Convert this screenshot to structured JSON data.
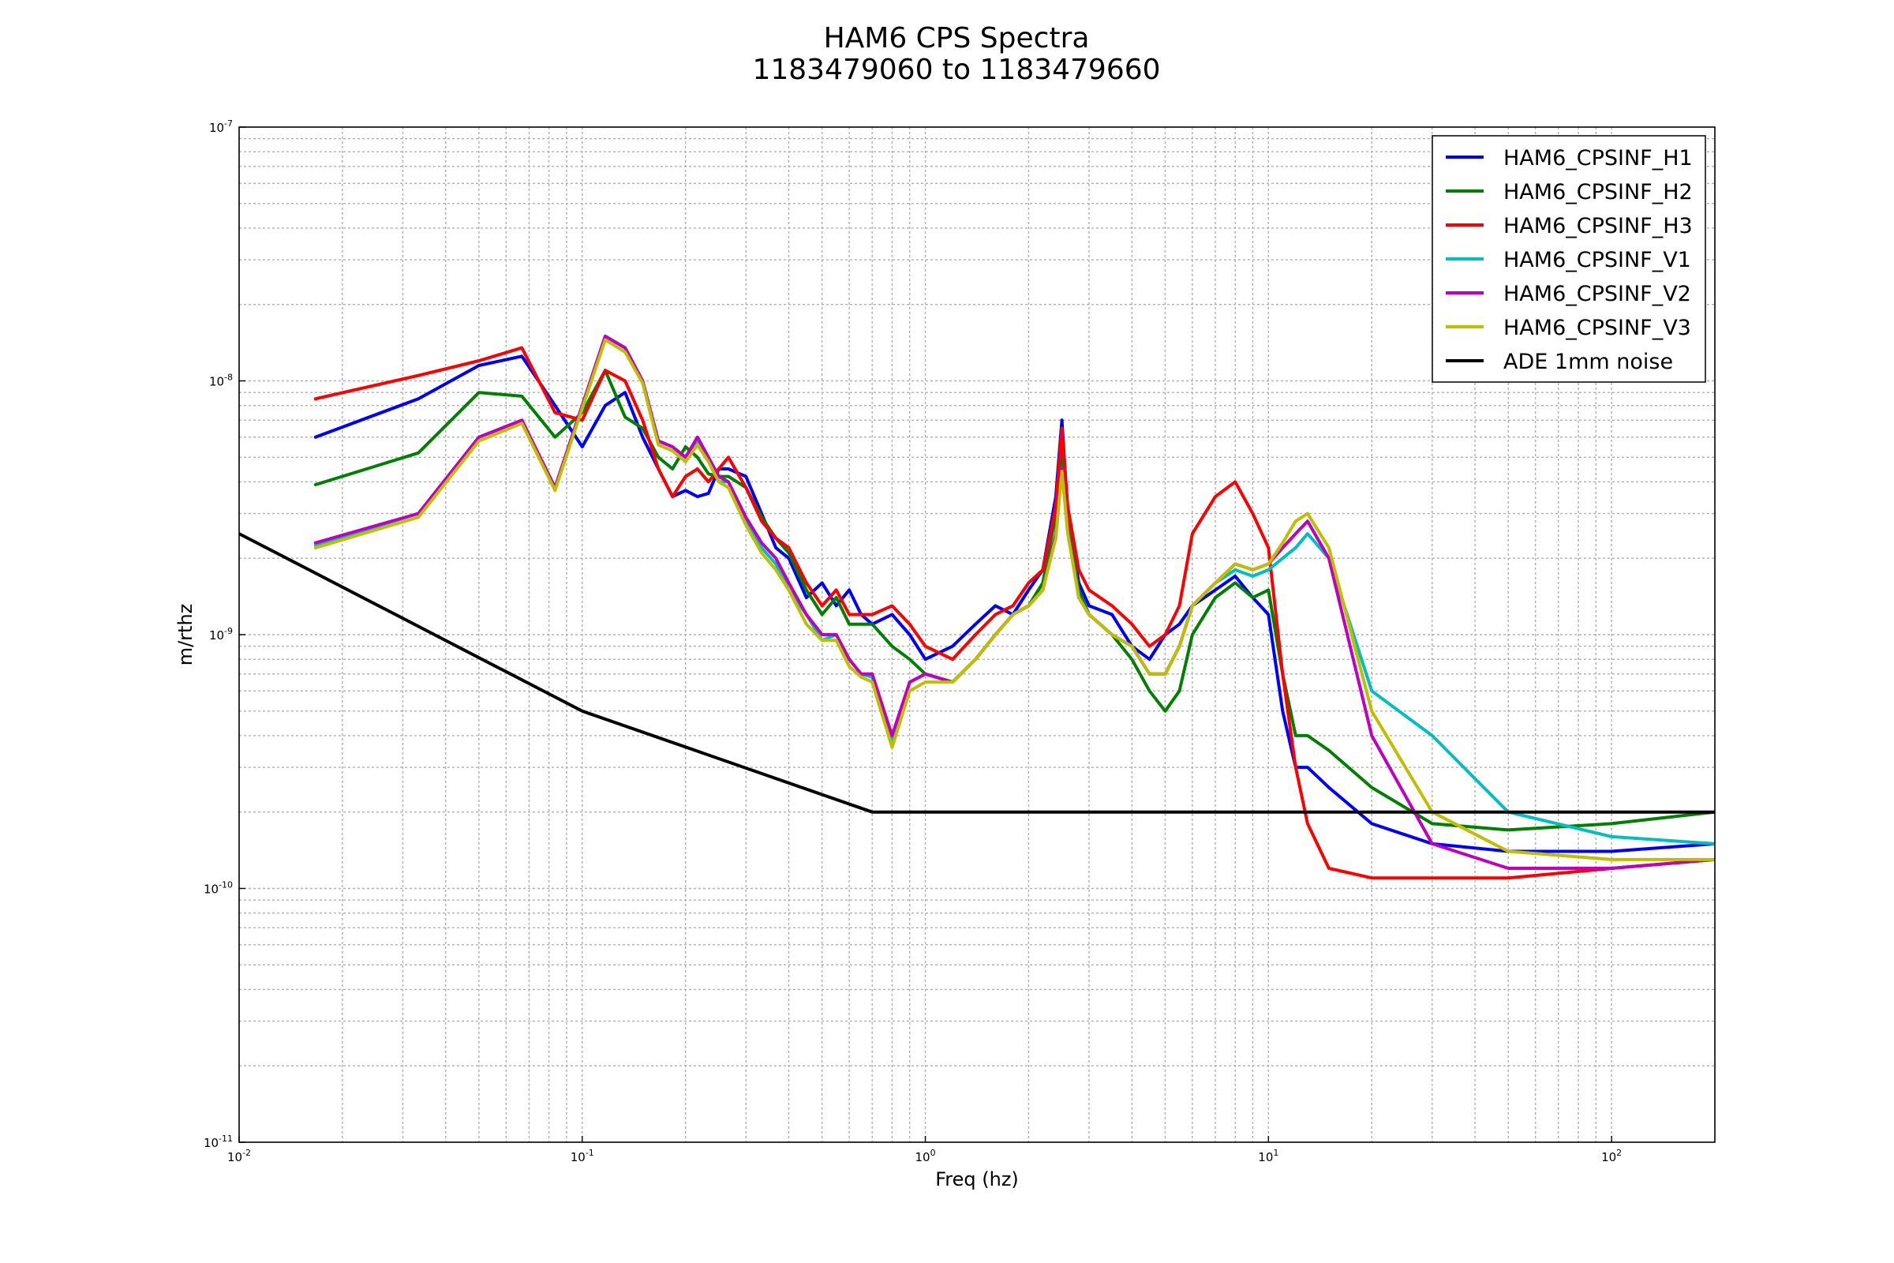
{
  "chart_data": {
    "type": "line",
    "title": "HAM6 CPS Spectra",
    "subtitle": "1183479060 to 1183479660",
    "xlabel": "Freq (hz)",
    "ylabel": "m/rthz",
    "x_scale": "log",
    "y_scale": "log",
    "xlim": [
      0.01,
      200
    ],
    "ylim": [
      1e-11,
      1e-07
    ],
    "x_ticks": [
      {
        "base": "10",
        "exp": "-2",
        "value": 0.01
      },
      {
        "base": "10",
        "exp": "-1",
        "value": 0.1
      },
      {
        "base": "10",
        "exp": "0",
        "value": 1
      },
      {
        "base": "10",
        "exp": "1",
        "value": 10
      },
      {
        "base": "10",
        "exp": "2",
        "value": 100
      }
    ],
    "y_ticks": [
      {
        "base": "10",
        "exp": "-7",
        "value": 1e-07
      },
      {
        "base": "10",
        "exp": "-8",
        "value": 1e-08
      },
      {
        "base": "10",
        "exp": "-9",
        "value": 1e-09
      },
      {
        "base": "10",
        "exp": "-10",
        "value": 1e-10
      },
      {
        "base": "10",
        "exp": "-11",
        "value": 1e-11
      }
    ],
    "grid": true,
    "legend_position": "top-right",
    "series": [
      {
        "name": "HAM6_CPSINF_H1",
        "color": "#0000ff",
        "x": [
          0.0167,
          0.0333,
          0.05,
          0.0667,
          0.0833,
          0.1,
          0.1167,
          0.1333,
          0.15,
          0.1667,
          0.1833,
          0.2,
          0.2167,
          0.2333,
          0.25,
          0.2667,
          0.3,
          0.3333,
          0.3667,
          0.4,
          0.45,
          0.5,
          0.55,
          0.6,
          0.65,
          0.7,
          0.8,
          0.9,
          1.0,
          1.2,
          1.4,
          1.6,
          1.8,
          2.0,
          2.2,
          2.4,
          2.5,
          2.6,
          2.8,
          3.0,
          3.5,
          4.0,
          4.5,
          5.0,
          5.5,
          6.0,
          7.0,
          8.0,
          9.0,
          10.0,
          11.0,
          12.0,
          13.0,
          15.0,
          20.0,
          30.0,
          50.0,
          100.0,
          200.0
        ],
        "y": [
          6e-09,
          8.5e-09,
          1.15e-08,
          1.25e-08,
          8e-09,
          5.5e-09,
          8e-09,
          9e-09,
          6e-09,
          4.5e-09,
          3.5e-09,
          3.7e-09,
          3.5e-09,
          3.6e-09,
          4.5e-09,
          4.5e-09,
          4.2e-09,
          3e-09,
          2.2e-09,
          2e-09,
          1.4e-09,
          1.6e-09,
          1.3e-09,
          1.5e-09,
          1.2e-09,
          1.1e-09,
          1.2e-09,
          1e-09,
          8e-10,
          9e-10,
          1.1e-09,
          1.3e-09,
          1.2e-09,
          1.5e-09,
          1.8e-09,
          3.5e-09,
          7e-09,
          3e-09,
          1.6e-09,
          1.3e-09,
          1.2e-09,
          9e-10,
          8e-10,
          1e-09,
          1.1e-09,
          1.3e-09,
          1.5e-09,
          1.7e-09,
          1.4e-09,
          1.2e-09,
          5e-10,
          3e-10,
          3e-10,
          2.5e-10,
          1.8e-10,
          1.5e-10,
          1.4e-10,
          1.4e-10,
          1.5e-10
        ]
      },
      {
        "name": "HAM6_CPSINF_H2",
        "color": "#008000",
        "x": [
          0.0167,
          0.0333,
          0.05,
          0.0667,
          0.0833,
          0.1,
          0.1167,
          0.1333,
          0.15,
          0.1667,
          0.1833,
          0.2,
          0.2167,
          0.2333,
          0.25,
          0.2667,
          0.3,
          0.3333,
          0.3667,
          0.4,
          0.45,
          0.5,
          0.55,
          0.6,
          0.65,
          0.7,
          0.8,
          0.9,
          1.0,
          1.2,
          1.4,
          1.6,
          1.8,
          2.0,
          2.2,
          2.4,
          2.5,
          2.6,
          2.8,
          3.0,
          3.5,
          4.0,
          4.5,
          5.0,
          5.5,
          6.0,
          7.0,
          8.0,
          9.0,
          10.0,
          11.0,
          12.0,
          13.0,
          15.0,
          20.0,
          30.0,
          50.0,
          100.0,
          200.0
        ],
        "y": [
          3.9e-09,
          5.2e-09,
          9e-09,
          8.7e-09,
          6e-09,
          7.5e-09,
          1.1e-08,
          7.2e-09,
          6.5e-09,
          5e-09,
          4.5e-09,
          5.5e-09,
          5e-09,
          4.3e-09,
          4.2e-09,
          4.2e-09,
          3.8e-09,
          2.9e-09,
          2.4e-09,
          2.1e-09,
          1.5e-09,
          1.2e-09,
          1.4e-09,
          1.1e-09,
          1.1e-09,
          1.1e-09,
          9e-10,
          8e-10,
          7e-10,
          6.5e-10,
          8e-10,
          1e-09,
          1.2e-09,
          1.3e-09,
          1.6e-09,
          3e-09,
          5.5e-09,
          2.8e-09,
          1.5e-09,
          1.2e-09,
          1e-09,
          8e-10,
          6e-10,
          5e-10,
          6e-10,
          1e-09,
          1.4e-09,
          1.6e-09,
          1.4e-09,
          1.5e-09,
          7e-10,
          4e-10,
          4e-10,
          3.5e-10,
          2.5e-10,
          1.8e-10,
          1.7e-10,
          1.8e-10,
          2e-10
        ]
      },
      {
        "name": "HAM6_CPSINF_H3",
        "color": "#ff0000",
        "x": [
          0.0167,
          0.0333,
          0.05,
          0.0667,
          0.0833,
          0.1,
          0.1167,
          0.1333,
          0.15,
          0.1667,
          0.1833,
          0.2,
          0.2167,
          0.2333,
          0.25,
          0.2667,
          0.3,
          0.3333,
          0.3667,
          0.4,
          0.45,
          0.5,
          0.55,
          0.6,
          0.65,
          0.7,
          0.8,
          0.9,
          1.0,
          1.2,
          1.4,
          1.6,
          1.8,
          2.0,
          2.2,
          2.4,
          2.5,
          2.6,
          2.8,
          3.0,
          3.5,
          4.0,
          4.5,
          5.0,
          5.5,
          6.0,
          7.0,
          8.0,
          9.0,
          10.0,
          11.0,
          12.0,
          13.0,
          15.0,
          20.0,
          30.0,
          50.0,
          100.0,
          200.0
        ],
        "y": [
          8.5e-09,
          1.05e-08,
          1.2e-08,
          1.35e-08,
          7.5e-09,
          7e-09,
          1.1e-08,
          1e-08,
          7e-09,
          4.5e-09,
          3.5e-09,
          4.2e-09,
          4.5e-09,
          4e-09,
          4.5e-09,
          5e-09,
          3.8e-09,
          2.8e-09,
          2.4e-09,
          2.2e-09,
          1.6e-09,
          1.3e-09,
          1.5e-09,
          1.2e-09,
          1.2e-09,
          1.2e-09,
          1.3e-09,
          1.1e-09,
          9e-10,
          8e-10,
          1e-09,
          1.2e-09,
          1.3e-09,
          1.6e-09,
          1.8e-09,
          3.2e-09,
          6.5e-09,
          3.2e-09,
          1.8e-09,
          1.5e-09,
          1.3e-09,
          1.1e-09,
          9e-10,
          1e-09,
          1.3e-09,
          2.5e-09,
          3.5e-09,
          4e-09,
          3e-09,
          2.2e-09,
          7e-10,
          3e-10,
          1.8e-10,
          1.2e-10,
          1.1e-10,
          1.1e-10,
          1.1e-10,
          1.2e-10,
          1.3e-10
        ]
      },
      {
        "name": "HAM6_CPSINF_V1",
        "color": "#00bfbf",
        "x": [
          0.0167,
          0.0333,
          0.05,
          0.0667,
          0.0833,
          0.1,
          0.1167,
          0.1333,
          0.15,
          0.1667,
          0.1833,
          0.2,
          0.2167,
          0.2333,
          0.25,
          0.2667,
          0.3,
          0.3333,
          0.3667,
          0.4,
          0.45,
          0.5,
          0.55,
          0.6,
          0.65,
          0.7,
          0.8,
          0.9,
          1.0,
          1.2,
          1.4,
          1.6,
          1.8,
          2.0,
          2.2,
          2.4,
          2.5,
          2.6,
          2.8,
          3.0,
          3.5,
          4.0,
          4.5,
          5.0,
          5.5,
          6.0,
          7.0,
          8.0,
          9.0,
          10.0,
          11.0,
          12.0,
          13.0,
          15.0,
          20.0,
          30.0,
          50.0,
          100.0,
          200.0
        ],
        "y": [
          2.25e-09,
          3e-09,
          6e-09,
          7e-09,
          3.8e-09,
          8e-09,
          1.5e-08,
          1.35e-08,
          1e-08,
          5.8e-09,
          5.5e-09,
          5e-09,
          5.8e-09,
          5e-09,
          4e-09,
          4e-09,
          2.8e-09,
          2.2e-09,
          1.9e-09,
          1.5e-09,
          1.2e-09,
          9.5e-10,
          1e-09,
          8e-10,
          7e-10,
          6.8e-10,
          3.8e-10,
          6.5e-10,
          7e-10,
          6.5e-10,
          8e-10,
          1e-09,
          1.2e-09,
          1.3e-09,
          1.5e-09,
          2.5e-09,
          4.5e-09,
          2.6e-09,
          1.4e-09,
          1.2e-09,
          1e-09,
          9e-10,
          7e-10,
          7e-10,
          9e-10,
          1.3e-09,
          1.6e-09,
          1.8e-09,
          1.7e-09,
          1.8e-09,
          2e-09,
          2.2e-09,
          2.5e-09,
          2e-09,
          6e-10,
          4e-10,
          2e-10,
          1.6e-10,
          1.5e-10
        ]
      },
      {
        "name": "HAM6_CPSINF_V2",
        "color": "#bf00bf",
        "x": [
          0.0167,
          0.0333,
          0.05,
          0.0667,
          0.0833,
          0.1,
          0.1167,
          0.1333,
          0.15,
          0.1667,
          0.1833,
          0.2,
          0.2167,
          0.2333,
          0.25,
          0.2667,
          0.3,
          0.3333,
          0.3667,
          0.4,
          0.45,
          0.5,
          0.55,
          0.6,
          0.65,
          0.7,
          0.8,
          0.9,
          1.0,
          1.2,
          1.4,
          1.6,
          1.8,
          2.0,
          2.2,
          2.4,
          2.5,
          2.6,
          2.8,
          3.0,
          3.5,
          4.0,
          4.5,
          5.0,
          5.5,
          6.0,
          7.0,
          8.0,
          9.0,
          10.0,
          11.0,
          12.0,
          13.0,
          15.0,
          20.0,
          30.0,
          50.0,
          100.0,
          200.0
        ],
        "y": [
          2.3e-09,
          3e-09,
          6e-09,
          7e-09,
          3.8e-09,
          8e-09,
          1.5e-08,
          1.35e-08,
          1e-08,
          5.8e-09,
          5.5e-09,
          5e-09,
          6e-09,
          5e-09,
          4.2e-09,
          4e-09,
          2.9e-09,
          2.3e-09,
          2e-09,
          1.6e-09,
          1.2e-09,
          1e-09,
          1e-09,
          8e-10,
          7e-10,
          7e-10,
          4e-10,
          6.5e-10,
          7e-10,
          6.5e-10,
          8e-10,
          1e-09,
          1.2e-09,
          1.3e-09,
          1.5e-09,
          2.5e-09,
          4.5e-09,
          2.6e-09,
          1.4e-09,
          1.2e-09,
          1e-09,
          9e-10,
          7e-10,
          7e-10,
          9e-10,
          1.3e-09,
          1.6e-09,
          1.9e-09,
          1.8e-09,
          1.9e-09,
          2.2e-09,
          2.5e-09,
          2.8e-09,
          2e-09,
          4e-10,
          1.5e-10,
          1.2e-10,
          1.2e-10,
          1.3e-10
        ]
      },
      {
        "name": "HAM6_CPSINF_V3",
        "color": "#bfbf00",
        "x": [
          0.0167,
          0.0333,
          0.05,
          0.0667,
          0.0833,
          0.1,
          0.1167,
          0.1333,
          0.15,
          0.1667,
          0.1833,
          0.2,
          0.2167,
          0.2333,
          0.25,
          0.2667,
          0.3,
          0.3333,
          0.3667,
          0.4,
          0.45,
          0.5,
          0.55,
          0.6,
          0.65,
          0.7,
          0.8,
          0.9,
          1.0,
          1.2,
          1.4,
          1.6,
          1.8,
          2.0,
          2.2,
          2.4,
          2.5,
          2.6,
          2.8,
          3.0,
          3.5,
          4.0,
          4.5,
          5.0,
          5.5,
          6.0,
          7.0,
          8.0,
          9.0,
          10.0,
          11.0,
          12.0,
          13.0,
          15.0,
          20.0,
          30.0,
          50.0,
          100.0,
          200.0
        ],
        "y": [
          2.2e-09,
          2.9e-09,
          5.8e-09,
          6.8e-09,
          3.7e-09,
          7.8e-09,
          1.45e-08,
          1.3e-08,
          9.8e-09,
          5.6e-09,
          5.3e-09,
          4.8e-09,
          5.6e-09,
          4.8e-09,
          4e-09,
          3.8e-09,
          2.7e-09,
          2.1e-09,
          1.8e-09,
          1.5e-09,
          1.1e-09,
          9.5e-10,
          9.5e-10,
          7.5e-10,
          6.8e-10,
          6.5e-10,
          3.6e-10,
          6e-10,
          6.5e-10,
          6.5e-10,
          8e-10,
          1e-09,
          1.2e-09,
          1.3e-09,
          1.5e-09,
          2.4e-09,
          4.4e-09,
          2.5e-09,
          1.4e-09,
          1.2e-09,
          1e-09,
          9e-10,
          7e-10,
          7e-10,
          9e-10,
          1.3e-09,
          1.6e-09,
          1.9e-09,
          1.8e-09,
          1.9e-09,
          2.3e-09,
          2.8e-09,
          3e-09,
          2.2e-09,
          5e-10,
          2e-10,
          1.4e-10,
          1.3e-10,
          1.3e-10
        ]
      },
      {
        "name": "ADE 1mm noise",
        "color": "#000000",
        "x": [
          0.01,
          0.1,
          0.7,
          200.0
        ],
        "y": [
          2.5e-09,
          5e-10,
          2e-10,
          2e-10
        ]
      }
    ]
  }
}
